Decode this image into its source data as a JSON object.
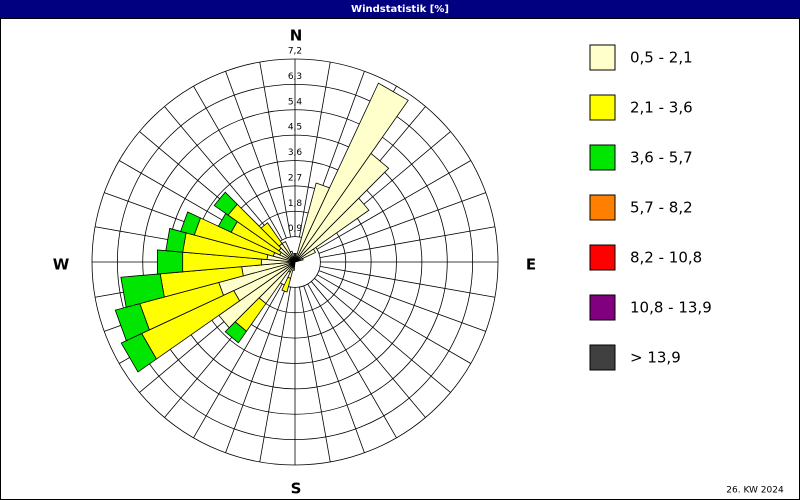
{
  "chart_data": {
    "type": "windrose",
    "title": "Windstatistik [%]",
    "footnote": "26. KW 2024",
    "direction_labels": [
      "N",
      "E",
      "S",
      "W"
    ],
    "x": [
      0,
      10,
      20,
      30,
      40,
      50,
      60,
      70,
      80,
      90,
      100,
      110,
      120,
      130,
      140,
      150,
      160,
      170,
      180,
      190,
      200,
      210,
      220,
      230,
      240,
      250,
      260,
      270,
      280,
      290,
      300,
      310,
      320,
      330,
      340,
      350
    ],
    "rlim": [
      0,
      7.2
    ],
    "rticks": [
      {
        "value": 0.9,
        "label": "0,9"
      },
      {
        "value": 1.8,
        "label": "1,8"
      },
      {
        "value": 2.7,
        "label": "2,7"
      },
      {
        "value": 3.6,
        "label": "3,6"
      },
      {
        "value": 4.5,
        "label": "4,5"
      },
      {
        "value": 5.4,
        "label": "5,4"
      },
      {
        "value": 6.3,
        "label": "6,3"
      },
      {
        "value": 7.2,
        "label": "7,2"
      }
    ],
    "series": [
      {
        "name": "0,5 - 2,1",
        "color": "#ffffcc",
        "values": [
          0.3,
          0.3,
          2.9,
          7.0,
          4.7,
          3.2,
          0.8,
          0.3,
          0,
          0,
          0,
          0,
          0,
          0,
          0,
          0,
          0,
          0,
          0,
          0.3,
          0.6,
          0.4,
          1.8,
          3.3,
          2.4,
          2.8,
          1.9,
          1.2,
          1.0,
          0.8,
          0.6,
          0.7,
          0.8,
          0.8,
          0.4,
          0.3
        ]
      },
      {
        "name": "2,1 - 3,6",
        "color": "#ffff00",
        "values": [
          0,
          0,
          0,
          0,
          0,
          0,
          0,
          0,
          0,
          0,
          0,
          0,
          0,
          0,
          0,
          0,
          0,
          0,
          0,
          0,
          0.5,
          0,
          1.2,
          0,
          3.6,
          2.9,
          2.9,
          2.8,
          3.0,
          2.9,
          1.9,
          2.2,
          0.9,
          0,
          0,
          0
        ]
      },
      {
        "name": "3,6 - 5,7",
        "color": "#00e600",
        "values": [
          0,
          0,
          0,
          0,
          0,
          0,
          0,
          0,
          0,
          0,
          0,
          0,
          0,
          0,
          0,
          0,
          0,
          0,
          0,
          0,
          0,
          0,
          0.5,
          0,
          0.8,
          0.9,
          1.4,
          0.9,
          0.6,
          0.5,
          0.5,
          0.6,
          0,
          0,
          0,
          0
        ]
      },
      {
        "name": "5,7 - 8,2",
        "color": "#ff8000",
        "values": [
          0,
          0,
          0,
          0,
          0,
          0,
          0,
          0,
          0,
          0,
          0,
          0,
          0,
          0,
          0,
          0,
          0,
          0,
          0,
          0,
          0,
          0,
          0,
          0,
          0,
          0,
          0,
          0,
          0,
          0,
          0,
          0,
          0,
          0,
          0,
          0
        ]
      },
      {
        "name": "8,2 - 10,8",
        "color": "#ff0000",
        "values": [
          0,
          0,
          0,
          0,
          0,
          0,
          0,
          0,
          0,
          0,
          0,
          0,
          0,
          0,
          0,
          0,
          0,
          0,
          0,
          0,
          0,
          0,
          0,
          0,
          0,
          0,
          0,
          0,
          0,
          0,
          0,
          0,
          0,
          0,
          0,
          0
        ]
      },
      {
        "name": "10,8 - 13,9",
        "color": "#800080",
        "values": [
          0,
          0,
          0,
          0,
          0,
          0,
          0,
          0,
          0,
          0,
          0,
          0,
          0,
          0,
          0,
          0,
          0,
          0,
          0,
          0,
          0,
          0,
          0,
          0,
          0,
          0,
          0,
          0,
          0,
          0,
          0,
          0,
          0,
          0,
          0,
          0
        ]
      },
      {
        "name": "> 13,9",
        "color": "#404040",
        "values": [
          0,
          0,
          0,
          0,
          0,
          0,
          0,
          0,
          0,
          0,
          0,
          0,
          0,
          0,
          0,
          0,
          0,
          0,
          0,
          0,
          0,
          0,
          0,
          0,
          0,
          0,
          0,
          0,
          0,
          0,
          0,
          0,
          0,
          0,
          0,
          0
        ]
      }
    ]
  }
}
